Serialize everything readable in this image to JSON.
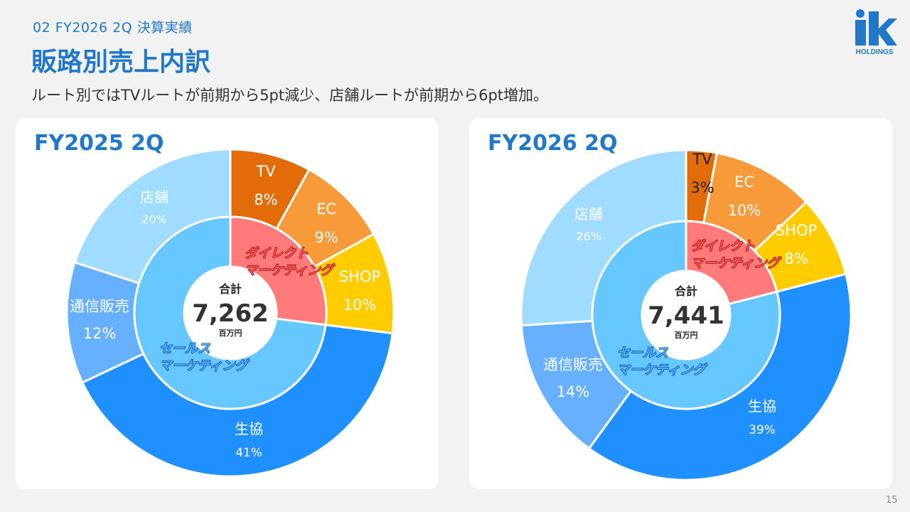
{
  "header": {
    "section": "02  FY2026 2Q  決算実績",
    "title": "販路別売上内訳",
    "subtitle": "ルート別ではTVルートが前期から5pt減少、店舗ルートが前期から6pt増加。"
  },
  "logo": {
    "letters": "ik",
    "text": "HOLDINGS",
    "color": "#1f78c8"
  },
  "page_number": "15",
  "center": {
    "label": "合計",
    "unit": "百万円"
  },
  "inner_labels": {
    "direct": [
      "ダイレクト",
      "マーケティング"
    ],
    "sales": [
      "セールス",
      "マーケティング"
    ]
  },
  "colors": {
    "TV": "#e36c0a",
    "EC": "#f79a3a",
    "SHOP": "#ffcc00",
    "生協": "#2190ff",
    "通信販売": "#66b0ff",
    "店舗": "#9fdcff",
    "direct": "#ff7b7b",
    "sales": "#66c8ff"
  },
  "chart_data": [
    {
      "type": "pie",
      "title": "FY2025 2Q",
      "total": "7,262",
      "outer": [
        {
          "name": "TV",
          "value": 8,
          "label": "8%"
        },
        {
          "name": "EC",
          "value": 9,
          "label": "9%"
        },
        {
          "name": "SHOP",
          "value": 10,
          "label": "10%"
        },
        {
          "name": "生協",
          "value": 41,
          "label": "41%"
        },
        {
          "name": "通信販売",
          "value": 12,
          "label": "12%"
        },
        {
          "name": "店舗",
          "value": 20,
          "label": "20%"
        }
      ],
      "inner": [
        {
          "name": "ダイレクトマーケティング",
          "value": 27
        },
        {
          "name": "セールスマーケティング",
          "value": 73
        }
      ]
    },
    {
      "type": "pie",
      "title": "FY2026 2Q",
      "total": "7,441",
      "outer": [
        {
          "name": "TV",
          "value": 3,
          "label": "3%"
        },
        {
          "name": "EC",
          "value": 10,
          "label": "10%"
        },
        {
          "name": "SHOP",
          "value": 8,
          "label": "8%"
        },
        {
          "name": "生協",
          "value": 39,
          "label": "39%"
        },
        {
          "name": "通信販売",
          "value": 14,
          "label": "14%"
        },
        {
          "name": "店舗",
          "value": 26,
          "label": "26%"
        }
      ],
      "inner": [
        {
          "name": "ダイレクトマーケティング",
          "value": 21
        },
        {
          "name": "セールスマーケティング",
          "value": 79
        }
      ]
    }
  ]
}
